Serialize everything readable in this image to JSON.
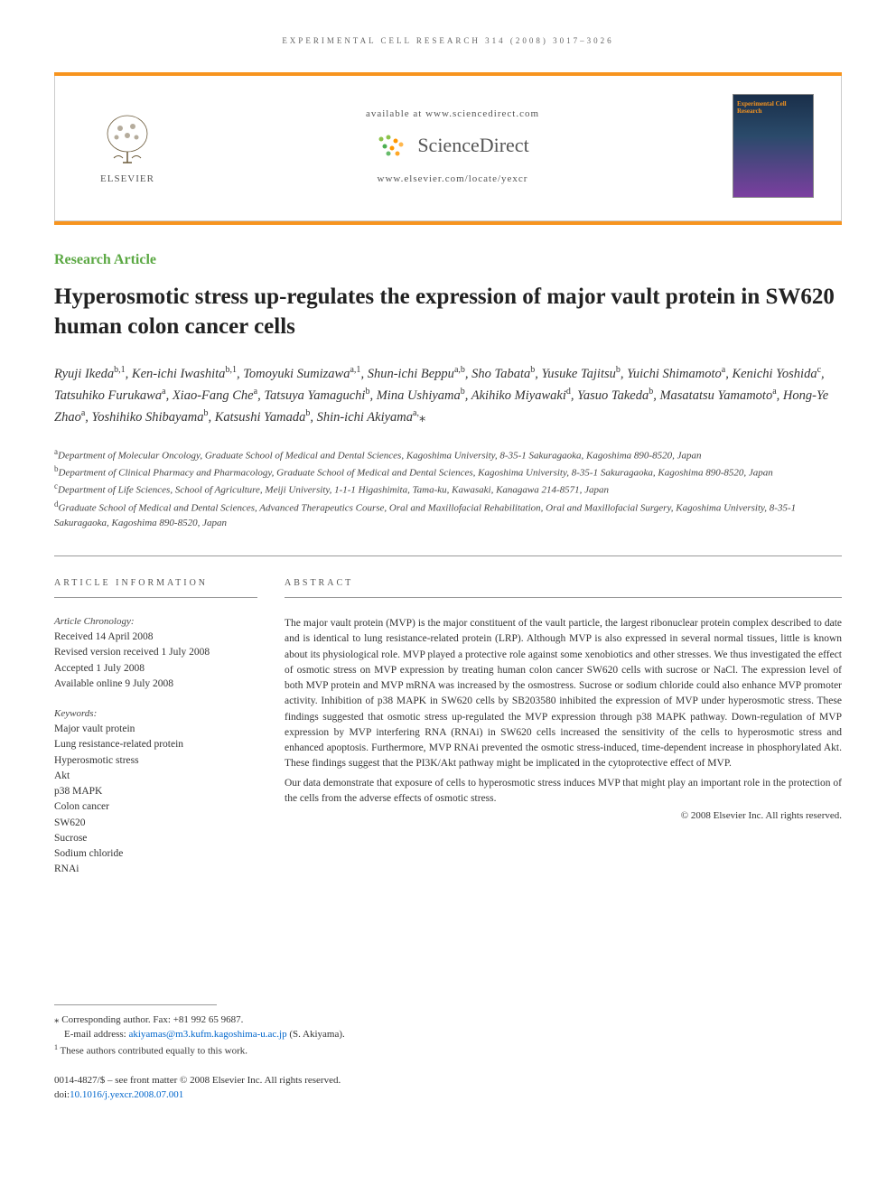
{
  "running_header": "EXPERIMENTAL CELL RESEARCH 314 (2008) 3017–3026",
  "banner": {
    "available_text": "available at www.sciencedirect.com",
    "sciencedirect": "ScienceDirect",
    "locate_text": "www.elsevier.com/locate/yexcr",
    "elsevier_label": "ELSEVIER",
    "journal_thumb_title": "Experimental Cell Research"
  },
  "article_type": "Research Article",
  "title": "Hyperosmotic stress up-regulates the expression of major vault protein in SW620 human colon cancer cells",
  "authors_html": "Ryuji Ikeda<sup>b,1</sup>, Ken-ichi Iwashita<sup>b,1</sup>, Tomoyuki Sumizawa<sup>a,1</sup>, Shun-ichi Beppu<sup>a,b</sup>, Sho Tabata<sup>b</sup>, Yusuke Tajitsu<sup>b</sup>, Yuichi Shimamoto<sup>a</sup>, Kenichi Yoshida<sup>c</sup>, Tatsuhiko Furukawa<sup>a</sup>, Xiao-Fang Che<sup>a</sup>, Tatsuya Yamaguchi<sup>b</sup>, Mina Ushiyama<sup>b</sup>, Akihiko Miyawaki<sup>d</sup>, Yasuo Takeda<sup>b</sup>, Masatatsu Yamamoto<sup>a</sup>, Hong-Ye Zhao<sup>a</sup>, Yoshihiko Shibayama<sup>b</sup>, Katsushi Yamada<sup>b</sup>, Shin-ichi Akiyama<sup>a,</sup><span class='corr'>⁎</span>",
  "affiliations": [
    {
      "sup": "a",
      "text": "Department of Molecular Oncology, Graduate School of Medical and Dental Sciences, Kagoshima University, 8-35-1 Sakuragaoka, Kagoshima 890-8520, Japan"
    },
    {
      "sup": "b",
      "text": "Department of Clinical Pharmacy and Pharmacology, Graduate School of Medical and Dental Sciences, Kagoshima University, 8-35-1 Sakuragaoka, Kagoshima 890-8520, Japan"
    },
    {
      "sup": "c",
      "text": "Department of Life Sciences, School of Agriculture, Meiji University, 1-1-1 Higashimita, Tama-ku, Kawasaki, Kanagawa 214-8571, Japan"
    },
    {
      "sup": "d",
      "text": "Graduate School of Medical and Dental Sciences, Advanced Therapeutics Course, Oral and Maxillofacial Rehabilitation, Oral and Maxillofacial Surgery, Kagoshima University, 8-35-1 Sakuragaoka, Kagoshima 890-8520, Japan"
    }
  ],
  "article_info_heading": "ARTICLE INFORMATION",
  "abstract_heading": "ABSTRACT",
  "chronology_label": "Article Chronology:",
  "chronology": [
    "Received 14 April 2008",
    "Revised version received 1 July 2008",
    "Accepted 1 July 2008",
    "Available online 9 July 2008"
  ],
  "keywords_label": "Keywords:",
  "keywords": [
    "Major vault protein",
    "Lung resistance-related protein",
    "Hyperosmotic stress",
    "Akt",
    "p38 MAPK",
    "Colon cancer",
    "SW620",
    "Sucrose",
    "Sodium chloride",
    "RNAi"
  ],
  "abstract_paragraphs": [
    "The major vault protein (MVP) is the major constituent of the vault particle, the largest ribonuclear protein complex described to date and is identical to lung resistance-related protein (LRP). Although MVP is also expressed in several normal tissues, little is known about its physiological role. MVP played a protective role against some xenobiotics and other stresses. We thus investigated the effect of osmotic stress on MVP expression by treating human colon cancer SW620 cells with sucrose or NaCl. The expression level of both MVP protein and MVP mRNA was increased by the osmostress. Sucrose or sodium chloride could also enhance MVP promoter activity. Inhibition of p38 MAPK in SW620 cells by SB203580 inhibited the expression of MVP under hyperosmotic stress. These findings suggested that osmotic stress up-regulated the MVP expression through p38 MAPK pathway. Down-regulation of MVP expression by MVP interfering RNA (RNAi) in SW620 cells increased the sensitivity of the cells to hyperosmotic stress and enhanced apoptosis. Furthermore, MVP RNAi prevented the osmotic stress-induced, time-dependent increase in phosphorylated Akt. These findings suggest that the PI3K/Akt pathway might be implicated in the cytoprotective effect of MVP.",
    "Our data demonstrate that exposure of cells to hyperosmotic stress induces MVP that might play an important role in the protection of the cells from the adverse effects of osmotic stress."
  ],
  "copyright": "© 2008 Elsevier Inc. All rights reserved.",
  "footnotes": {
    "corr_label": "⁎ Corresponding author.",
    "corr_fax": " Fax: +81 992 65 9687.",
    "email_label": "E-mail address: ",
    "email": "akiyamas@m3.kufm.kagoshima-u.ac.jp",
    "email_suffix": " (S. Akiyama).",
    "contrib_sup": "1",
    "contrib_text": " These authors contributed equally to this work."
  },
  "doi_block": {
    "issn_line": "0014-4827/$ – see front matter © 2008 Elsevier Inc. All rights reserved.",
    "doi_label": "doi:",
    "doi": "10.1016/j.yexcr.2008.07.001"
  },
  "colors": {
    "orange": "#f7941e",
    "green": "#5ba843",
    "link": "#0066cc",
    "text": "#333333",
    "border": "#999999"
  }
}
